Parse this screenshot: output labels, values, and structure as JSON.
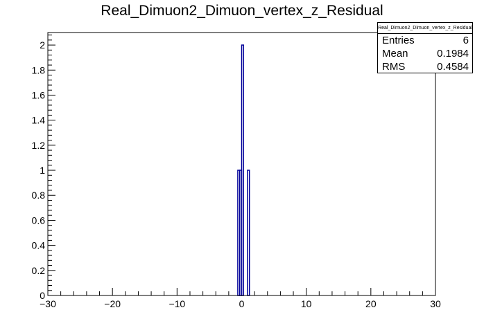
{
  "chart_data": {
    "type": "histogram",
    "title": "Real_Dimuon2_Dimuon_vertex_z_Residual",
    "xlabel": "",
    "ylabel": "",
    "xlim": [
      -30,
      30
    ],
    "ylim": [
      0,
      2.1
    ],
    "x_ticks": [
      -30,
      -20,
      -10,
      0,
      10,
      20,
      30
    ],
    "x_tick_labels": [
      "−30",
      "−20",
      "−10",
      "0",
      "10",
      "20",
      "30"
    ],
    "y_ticks": [
      0,
      0.2,
      0.4,
      0.6,
      0.8,
      1,
      1.2,
      1.4,
      1.6,
      1.8,
      2
    ],
    "y_tick_labels": [
      "0",
      "0.2",
      "0.4",
      "0.6",
      "0.8",
      "1",
      "1.2",
      "1.4",
      "1.6",
      "1.8",
      "2"
    ],
    "bin_width": 0.3,
    "bins": [
      {
        "x_low": -0.6,
        "x_high": -0.3,
        "value": 1
      },
      {
        "x_low": -0.3,
        "x_high": 0.0,
        "value": 1
      },
      {
        "x_low": 0.0,
        "x_high": 0.3,
        "value": 2
      },
      {
        "x_low": 0.9,
        "x_high": 1.2,
        "value": 1
      }
    ],
    "line_color": "#000099",
    "grid": false
  },
  "stats": {
    "name": "Real_Dimuon2_Dimuon_vertex_z_Residual",
    "rows": [
      {
        "label": "Entries",
        "value": "6"
      },
      {
        "label": "Mean",
        "value": "0.1984"
      },
      {
        "label": "RMS",
        "value": "0.4584"
      }
    ]
  }
}
